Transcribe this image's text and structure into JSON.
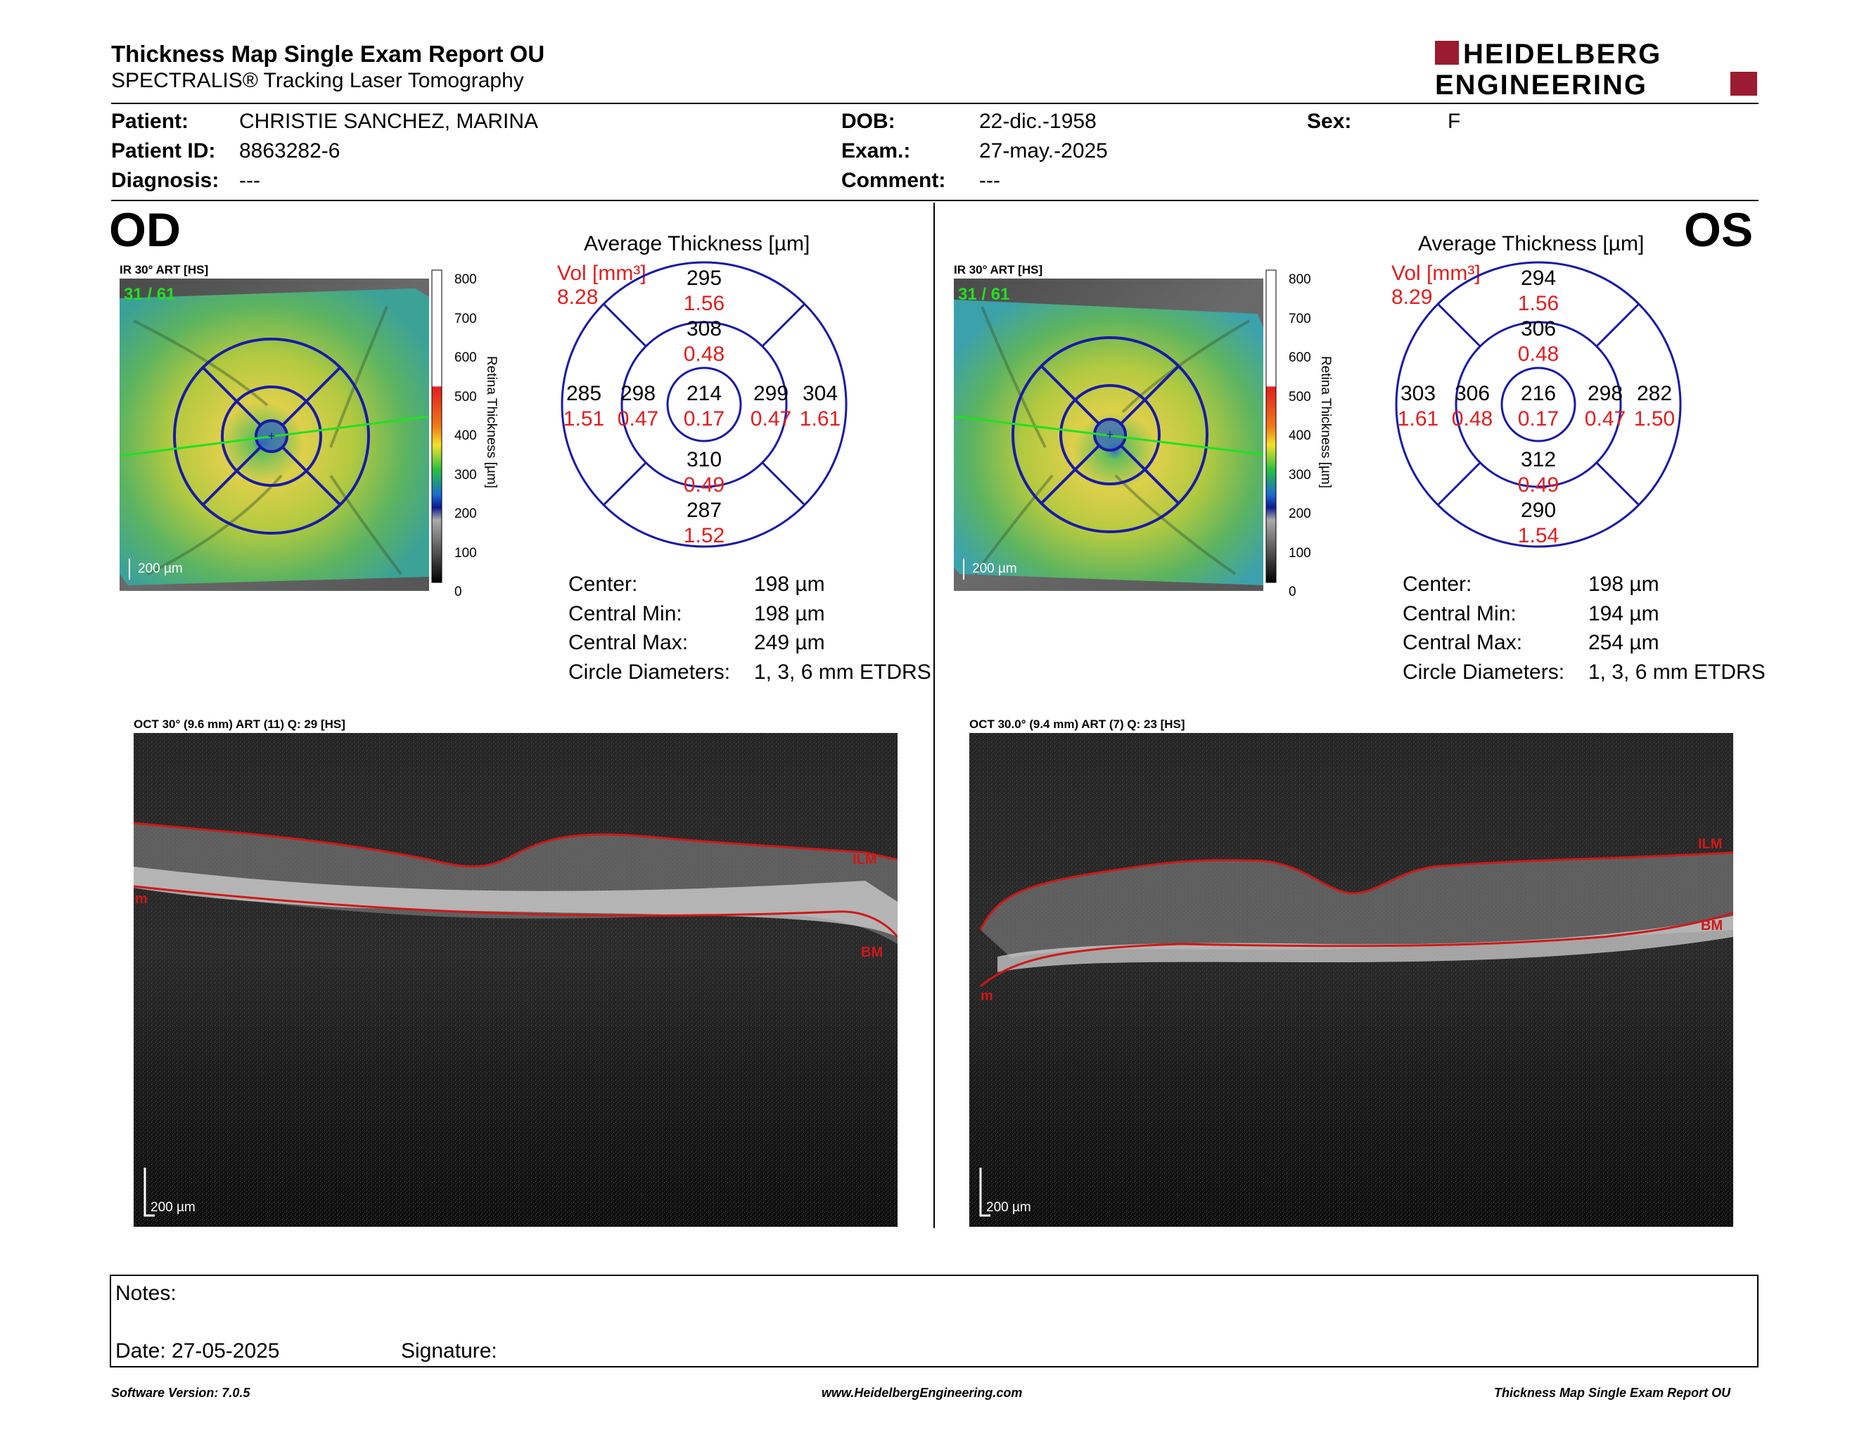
{
  "header": {
    "title": "Thickness Map Single Exam Report OU",
    "subtitle": "SPECTRALIS® Tracking Laser Tomography",
    "logo_line1": "HEIDELBERG",
    "logo_line2": "ENGINEERING",
    "logo_color": "#9b1b30"
  },
  "patient": {
    "patient_label": "Patient:",
    "patient_value": "CHRISTIE SANCHEZ, MARINA",
    "id_label": "Patient ID:",
    "id_value": "8863282-6",
    "diagnosis_label": "Diagnosis:",
    "diagnosis_value": "---",
    "dob_label": "DOB:",
    "dob_value": "22-dic.-1958",
    "exam_label": "Exam.:",
    "exam_value": "27-may.-2025",
    "comment_label": "Comment:",
    "comment_value": "---",
    "sex_label": "Sex:",
    "sex_value": "F"
  },
  "scale_labels": [
    "800",
    "700",
    "600",
    "500",
    "400",
    "300",
    "200",
    "100",
    "0"
  ],
  "scale_title": "Retina  Thickness [µm]",
  "od": {
    "eye": "OD",
    "ir_label": "IR 30° ART [HS]",
    "frame": "31 / 61",
    "scale_bar": "200 µm",
    "avg_title": "Average Thickness [µm]",
    "vol_label": "Vol [mm³]",
    "vol_value": "8.28",
    "sectors": {
      "center": {
        "t": "214",
        "v": "0.17"
      },
      "inner_sup": {
        "t": "308",
        "v": "0.48"
      },
      "inner_inf": {
        "t": "310",
        "v": "0.49"
      },
      "inner_left": {
        "t": "298",
        "v": "0.47"
      },
      "inner_right": {
        "t": "299",
        "v": "0.47"
      },
      "outer_sup": {
        "t": "295",
        "v": "1.56"
      },
      "outer_inf": {
        "t": "287",
        "v": "1.52"
      },
      "outer_left": {
        "t": "285",
        "v": "1.51"
      },
      "outer_right": {
        "t": "304",
        "v": "1.61"
      }
    },
    "stats": {
      "center_label": "Center:",
      "center_value": "198 µm",
      "min_label": "Central Min:",
      "min_value": "198 µm",
      "max_label": "Central Max:",
      "max_value": "249 µm",
      "diam_label": "Circle Diameters:",
      "diam_value": "1, 3, 6 mm ETDRS"
    },
    "oct_label": "OCT 30° (9.6 mm) ART (11) Q: 29 [HS]",
    "oct_scale": "200 µm",
    "ilm": "ILM",
    "bm": "BM",
    "m": "m"
  },
  "os": {
    "eye": "OS",
    "ir_label": "IR 30° ART [HS]",
    "frame": "31 / 61",
    "scale_bar": "200 µm",
    "avg_title": "Average Thickness [µm]",
    "vol_label": "Vol [mm³]",
    "vol_value": "8.29",
    "sectors": {
      "center": {
        "t": "216",
        "v": "0.17"
      },
      "inner_sup": {
        "t": "306",
        "v": "0.48"
      },
      "inner_inf": {
        "t": "312",
        "v": "0.49"
      },
      "inner_left": {
        "t": "306",
        "v": "0.48"
      },
      "inner_right": {
        "t": "298",
        "v": "0.47"
      },
      "outer_sup": {
        "t": "294",
        "v": "1.56"
      },
      "outer_inf": {
        "t": "290",
        "v": "1.54"
      },
      "outer_left": {
        "t": "303",
        "v": "1.61"
      },
      "outer_right": {
        "t": "282",
        "v": "1.50"
      }
    },
    "stats": {
      "center_label": "Center:",
      "center_value": "198 µm",
      "min_label": "Central Min:",
      "min_value": "194 µm",
      "max_label": "Central Max:",
      "max_value": "254 µm",
      "diam_label": "Circle Diameters:",
      "diam_value": "1, 3, 6 mm ETDRS"
    },
    "oct_label": "OCT 30.0° (9.4 mm) ART (7) Q: 23 [HS]",
    "oct_scale": "200 µm",
    "ilm": "ILM",
    "bm": "BM",
    "m": "m"
  },
  "notes": {
    "notes_label": "Notes:",
    "date_label": "Date: 27-05-2025",
    "signature_label": "Signature:"
  },
  "footer": {
    "software": "Software Version: 7.0.5",
    "website": "www.HeidelbergEngineering.com",
    "report": "Thickness Map Single Exam Report OU"
  },
  "colors": {
    "grid_blue": "#1a1aa6",
    "vol_red": "#e31e1e",
    "layer_red": "#d01818"
  }
}
